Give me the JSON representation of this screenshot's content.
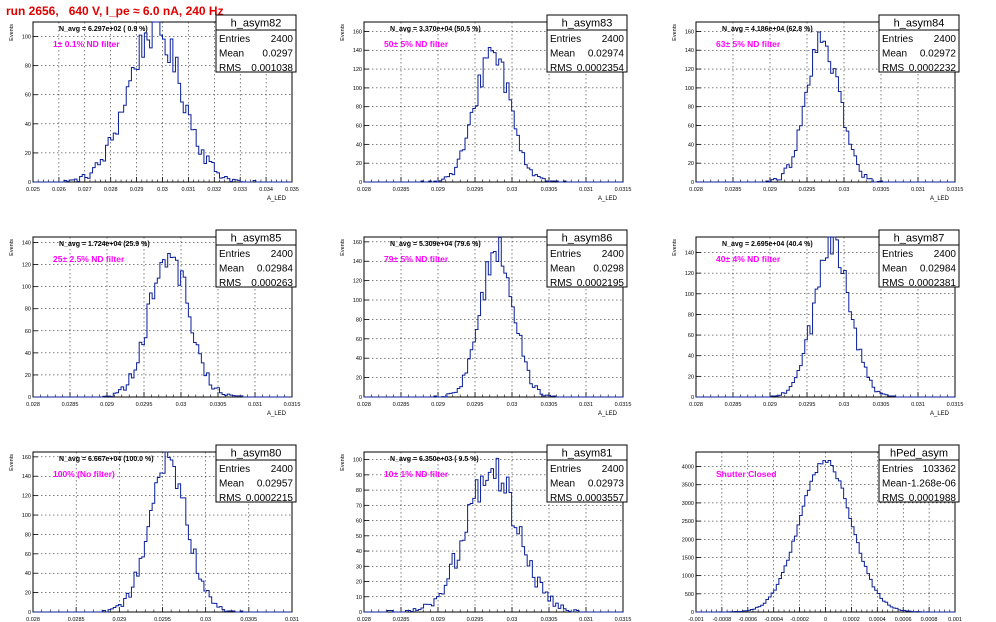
{
  "page": {
    "title": "run 2656,   640 V, I_pe ≈ 6.0 nA, 240 Hz"
  },
  "colors": {
    "histogram_line": "#0a1f9a",
    "annotation_text": "#ff00ff",
    "title_text": "#e00000",
    "frame": "#000000",
    "grid": "#000000"
  },
  "chart_data": [
    {
      "type": "bar",
      "name": "h_asym82",
      "stats": {
        "entries_label": "Entries",
        "entries": "2400",
        "mean_label": "Mean",
        "mean": "0.0297",
        "rms_label": "RMS",
        "rms": "0.001038"
      },
      "header": "N_avg = 6.297e+02 ( 0.9 %)",
      "annotation": "1± 0.1% ND filter",
      "xlabel": "A_LED",
      "ylabel": "Events",
      "xlim": [
        0.025,
        0.035
      ],
      "ylim": [
        0,
        110
      ],
      "xticks": [
        "0.025",
        "0.026",
        "0.027",
        "0.028",
        "0.029",
        "0.03",
        "0.031",
        "0.032",
        "0.033",
        "0.034",
        "0.035"
      ],
      "yticks": [
        "0",
        "20",
        "40",
        "60",
        "80",
        "100"
      ],
      "shape": {
        "mean": 0.0297,
        "sigma": 0.001038,
        "peak": 105,
        "bins": 100
      }
    },
    {
      "type": "bar",
      "name": "h_asym83",
      "stats": {
        "entries_label": "Entries",
        "entries": "2400",
        "mean_label": "Mean",
        "mean": "0.02974",
        "rms_label": "RMS",
        "rms": "0.0002354"
      },
      "header": "N_avg = 3.370e+04 (50.5 %)",
      "annotation": "50± 5% ND filter",
      "xlabel": "A_LED",
      "ylabel": "Events",
      "xlim": [
        0.028,
        0.0315
      ],
      "ylim": [
        0,
        170
      ],
      "xticks": [
        "0.028",
        "0.0285",
        "0.029",
        "0.0295",
        "0.03",
        "0.0305",
        "0.031",
        "0.0315"
      ],
      "yticks": [
        "0",
        "20",
        "40",
        "60",
        "80",
        "100",
        "120",
        "140",
        "160"
      ],
      "shape": {
        "mean": 0.02974,
        "sigma": 0.0002354,
        "peak": 140,
        "bins": 100
      }
    },
    {
      "type": "bar",
      "name": "h_asym84",
      "stats": {
        "entries_label": "Entries",
        "entries": "2400",
        "mean_label": "Mean",
        "mean": "0.02972",
        "rms_label": "RMS",
        "rms": "0.0002232"
      },
      "header": "N_avg = 4.186e+04 (62.8 %)",
      "annotation": "63± 5% ND filter",
      "xlabel": "A_LED",
      "ylabel": "Events",
      "xlim": [
        0.028,
        0.0315
      ],
      "ylim": [
        0,
        170
      ],
      "xticks": [
        "0.028",
        "0.0285",
        "0.029",
        "0.0295",
        "0.03",
        "0.0305",
        "0.031",
        "0.0315"
      ],
      "yticks": [
        "0",
        "20",
        "40",
        "60",
        "80",
        "100",
        "120",
        "140",
        "160"
      ],
      "shape": {
        "mean": 0.02972,
        "sigma": 0.0002232,
        "peak": 150,
        "bins": 100
      }
    },
    {
      "type": "bar",
      "name": "h_asym85",
      "stats": {
        "entries_label": "Entries",
        "entries": "2400",
        "mean_label": "Mean",
        "mean": "0.02984",
        "rms_label": "RMS",
        "rms": "0.000263"
      },
      "header": "N_avg = 1.724e+04 (25.9 %)",
      "annotation": "25± 2.5% ND filter",
      "xlabel": "A_LED",
      "ylabel": "Events",
      "xlim": [
        0.028,
        0.0315
      ],
      "ylim": [
        0,
        145
      ],
      "xticks": [
        "0.028",
        "0.0285",
        "0.029",
        "0.0295",
        "0.03",
        "0.0305",
        "0.031",
        "0.0315"
      ],
      "yticks": [
        "0",
        "20",
        "40",
        "60",
        "80",
        "100",
        "120",
        "140"
      ],
      "shape": {
        "mean": 0.02984,
        "sigma": 0.000263,
        "peak": 132,
        "bins": 100
      }
    },
    {
      "type": "bar",
      "name": "h_asym86",
      "stats": {
        "entries_label": "Entries",
        "entries": "2400",
        "mean_label": "Mean",
        "mean": "0.0298",
        "rms_label": "RMS",
        "rms": "0.0002195"
      },
      "header": "N_avg = 5.309e+04 (79.6 %)",
      "annotation": "79± 5% ND filter",
      "xlabel": "A_LED",
      "ylabel": "Events",
      "xlim": [
        0.028,
        0.0315
      ],
      "ylim": [
        0,
        165
      ],
      "xticks": [
        "0.028",
        "0.0285",
        "0.029",
        "0.0295",
        "0.03",
        "0.0305",
        "0.031",
        "0.0315"
      ],
      "yticks": [
        "0",
        "20",
        "40",
        "60",
        "80",
        "100",
        "120",
        "140",
        "160"
      ],
      "shape": {
        "mean": 0.0298,
        "sigma": 0.0002195,
        "peak": 155,
        "bins": 100
      }
    },
    {
      "type": "bar",
      "name": "h_asym87",
      "stats": {
        "entries_label": "Entries",
        "entries": "2400",
        "mean_label": "Mean",
        "mean": "0.02984",
        "rms_label": "RMS",
        "rms": "0.0002381"
      },
      "header": "N_avg = 2.695e+04 (40.4 %)",
      "annotation": "40± 4% ND filter",
      "xlabel": "A_LED",
      "ylabel": "Events",
      "xlim": [
        0.028,
        0.0315
      ],
      "ylim": [
        0,
        155
      ],
      "xticks": [
        "0.028",
        "0.0285",
        "0.029",
        "0.0295",
        "0.03",
        "0.0305",
        "0.031",
        "0.0315"
      ],
      "yticks": [
        "0",
        "20",
        "40",
        "60",
        "80",
        "100",
        "120",
        "140"
      ],
      "shape": {
        "mean": 0.02984,
        "sigma": 0.0002381,
        "peak": 145,
        "bins": 100
      }
    },
    {
      "type": "bar",
      "name": "h_asym80",
      "stats": {
        "entries_label": "Entries",
        "entries": "2400",
        "mean_label": "Mean",
        "mean": "0.02957",
        "rms_label": "RMS",
        "rms": "0.0002215"
      },
      "header": "N_avg = 6.667e+04 (100.0 %)",
      "annotation": "100% (No filter)",
      "xlabel": "A_LED",
      "ylabel": "Events",
      "xlim": [
        0.028,
        0.031
      ],
      "ylim": [
        0,
        165
      ],
      "xticks": [
        "0.028",
        "0.0285",
        "0.029",
        "0.0295",
        "0.03",
        "0.0305",
        "0.031"
      ],
      "yticks": [
        "0",
        "20",
        "40",
        "60",
        "80",
        "100",
        "120",
        "140",
        "160"
      ],
      "shape": {
        "mean": 0.02957,
        "sigma": 0.0002215,
        "peak": 152,
        "bins": 100
      }
    },
    {
      "type": "bar",
      "name": "h_asym81",
      "stats": {
        "entries_label": "Entries",
        "entries": "2400",
        "mean_label": "Mean",
        "mean": "0.02973",
        "rms_label": "RMS",
        "rms": "0.0003557"
      },
      "header": "N_avg = 6.350e+03 ( 9.5 %)",
      "annotation": "10± 1% ND filter",
      "xlabel": "A_LED",
      "ylabel": "Events",
      "xlim": [
        0.028,
        0.0315
      ],
      "ylim": [
        0,
        105
      ],
      "xticks": [
        "0.028",
        "0.0285",
        "0.029",
        "0.0295",
        "0.03",
        "0.0305",
        "0.031",
        "0.0315"
      ],
      "yticks": [
        "0",
        "10",
        "20",
        "30",
        "40",
        "50",
        "60",
        "70",
        "80",
        "90",
        "100"
      ],
      "shape": {
        "mean": 0.02973,
        "sigma": 0.0003557,
        "peak": 92,
        "bins": 100
      }
    },
    {
      "type": "bar",
      "name": "hPed_asym",
      "stats": {
        "entries_label": "Entries",
        "entries": "103362",
        "mean_label": "Mean",
        "mean": "-1.268e-06",
        "rms_label": "RMS",
        "rms": "0.0001988"
      },
      "header": "",
      "annotation": "Shutter Closed",
      "xlabel": "",
      "ylabel": "",
      "xlim": [
        -0.001,
        0.001
      ],
      "ylim": [
        0,
        4400
      ],
      "xticks": [
        "-0.001",
        "-0.0008",
        "-0.0006",
        "-0.0004",
        "-0.0002",
        "0",
        "0.0002",
        "0.0004",
        "0.0006",
        "0.0008",
        "0.001"
      ],
      "yticks": [
        "0",
        "500",
        "1000",
        "1500",
        "2000",
        "2500",
        "3000",
        "3500",
        "4000"
      ],
      "shape": {
        "mean": -1.27e-06,
        "sigma": 0.0001988,
        "peak": 4150,
        "bins": 100
      }
    }
  ]
}
